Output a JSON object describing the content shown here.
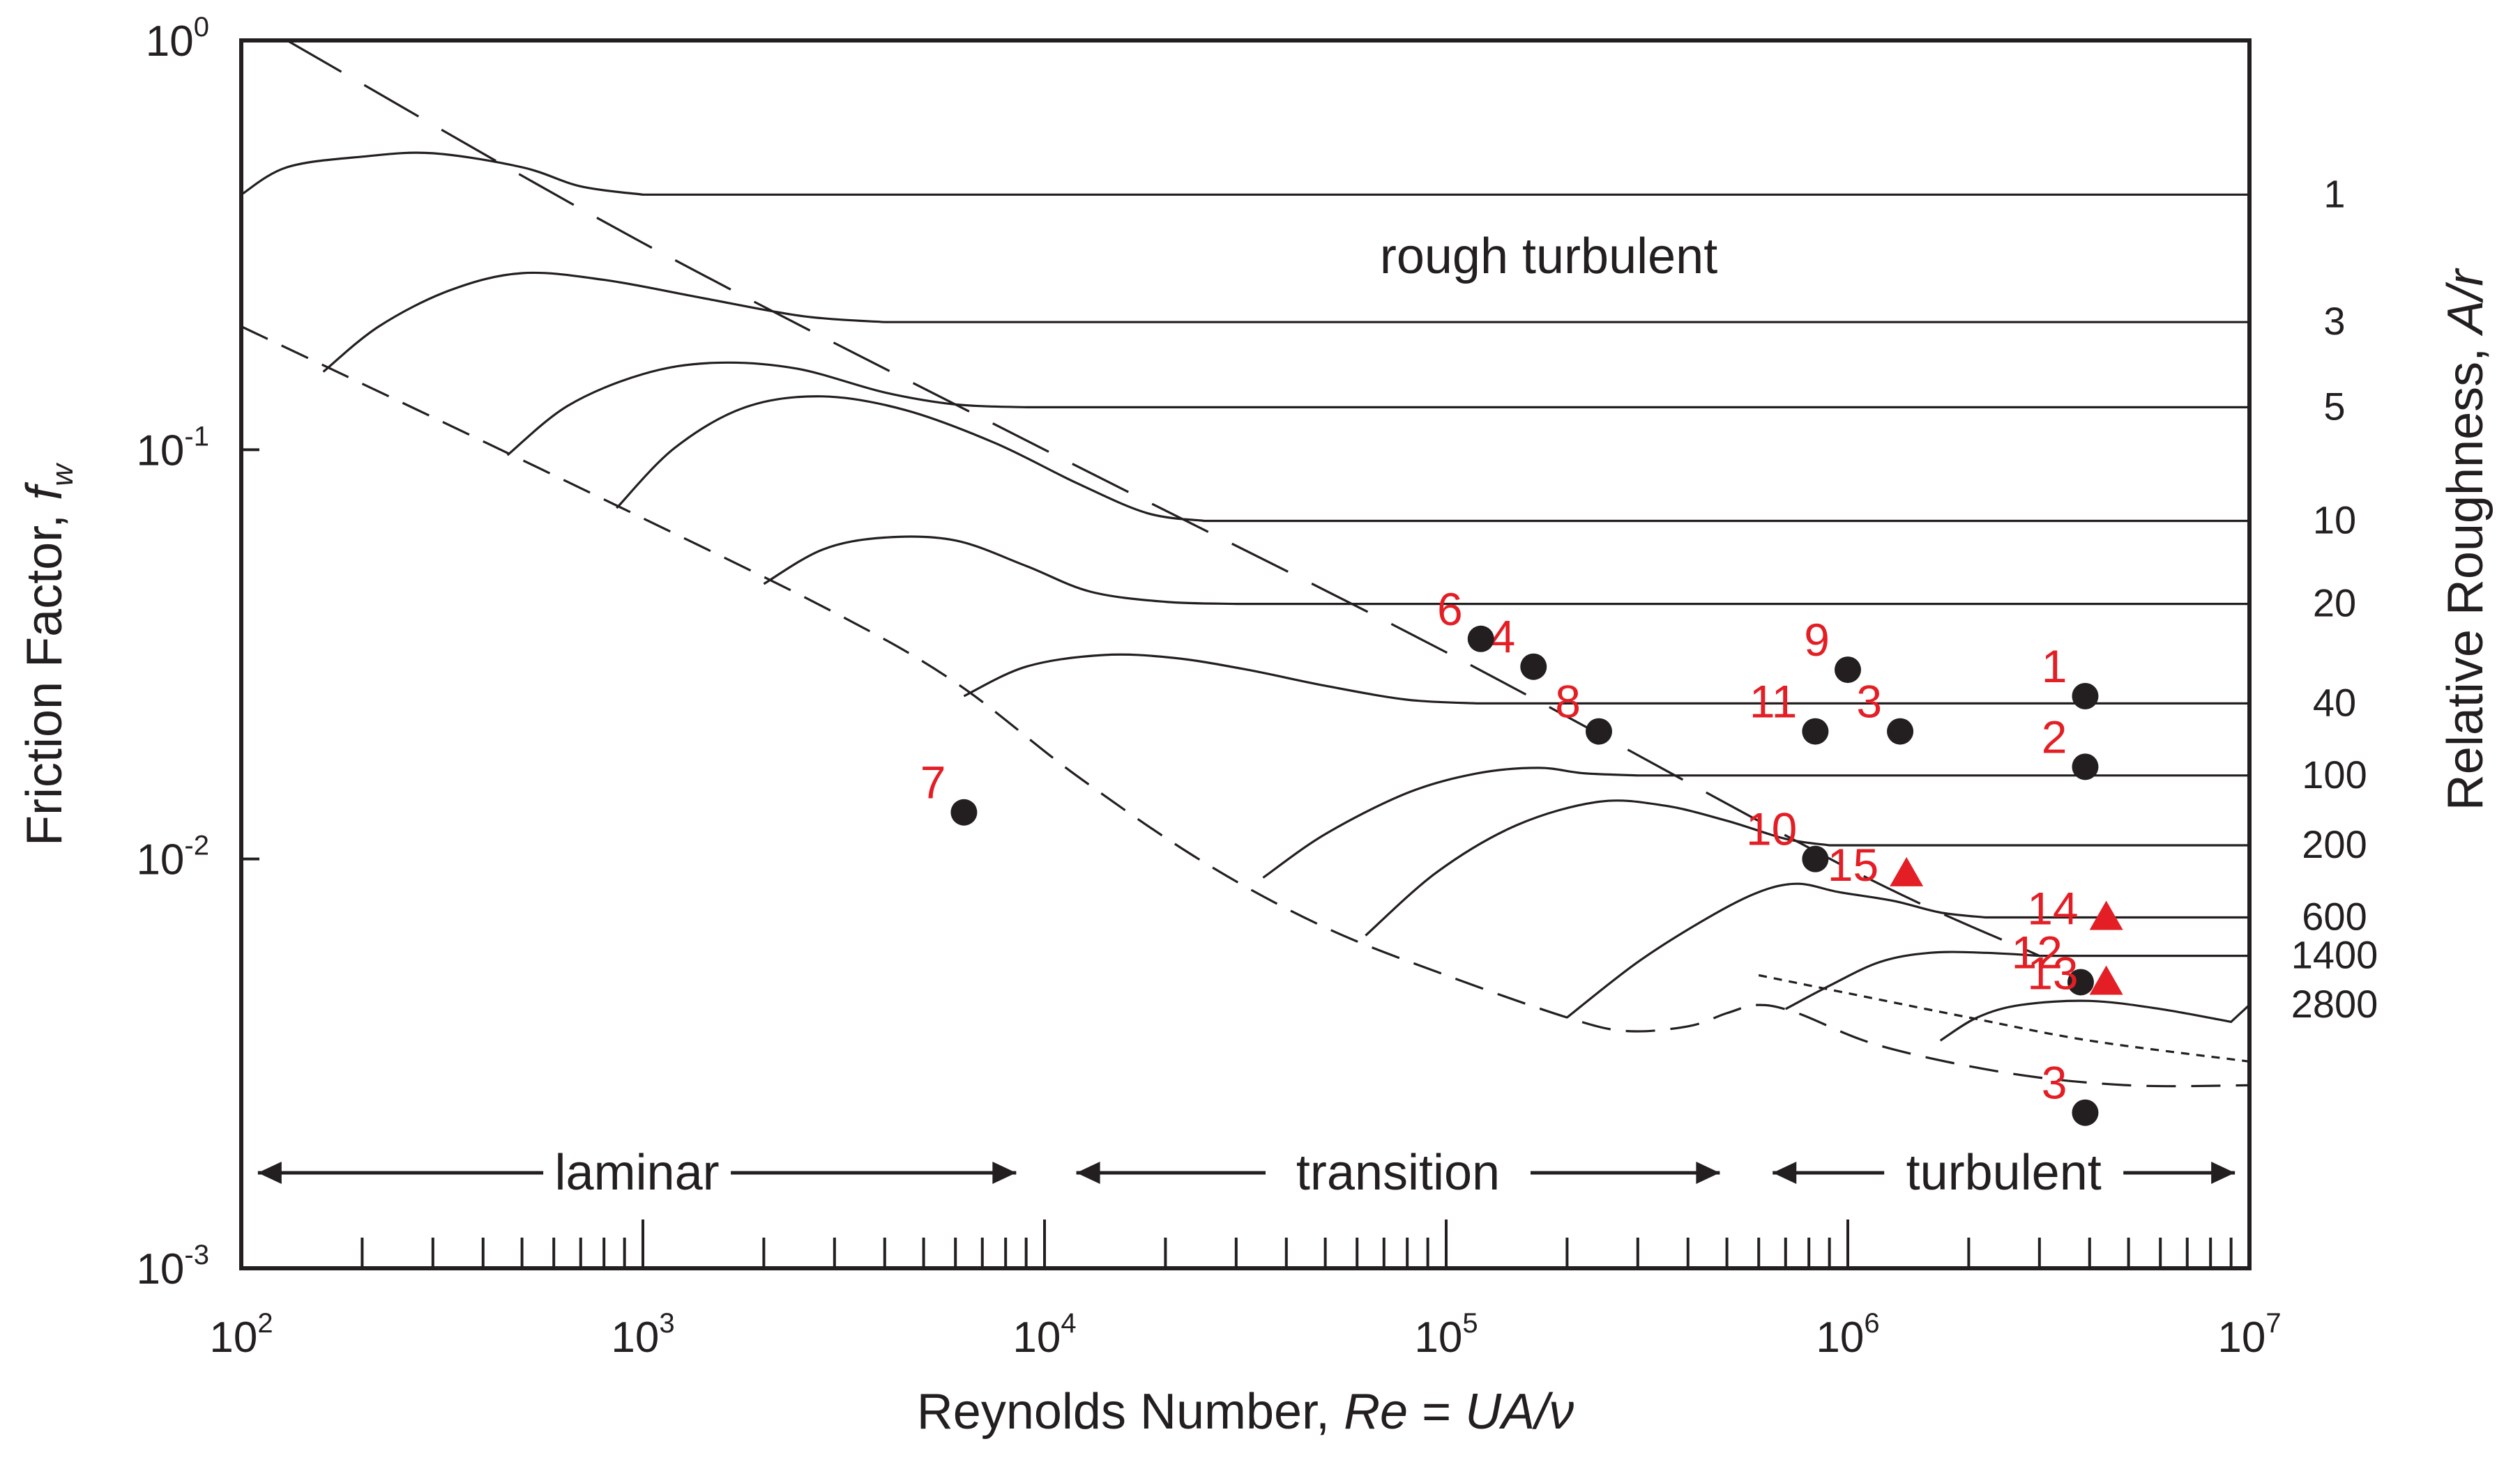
{
  "chart_data": {
    "type": "scatter",
    "title": "",
    "xlabel": "Reynolds Number, Re = UA/ν",
    "xlabel_parts": {
      "prefix": "Reynolds Number, ",
      "var": "Re",
      "mid": " = ",
      "expr": "UA/ν"
    },
    "ylabel_parts": {
      "prefix": "Friction Factor, ",
      "var": "f",
      "sub": "w"
    },
    "y2label_parts": {
      "prefix": "Relative Roughness, ",
      "var": "A/r"
    },
    "x_scale": "log",
    "y_scale": "log",
    "xlim": [
      100,
      10000000
    ],
    "ylim": [
      0.001,
      1
    ],
    "x_ticks": [
      {
        "value": 100,
        "base": "10",
        "exp": "2"
      },
      {
        "value": 1000,
        "base": "10",
        "exp": "3"
      },
      {
        "value": 10000,
        "base": "10",
        "exp": "4"
      },
      {
        "value": 100000,
        "base": "10",
        "exp": "5"
      },
      {
        "value": 1000000,
        "base": "10",
        "exp": "6"
      },
      {
        "value": 10000000,
        "base": "10",
        "exp": "7"
      }
    ],
    "y_ticks": [
      {
        "value": 1,
        "base": "10",
        "exp": "0"
      },
      {
        "value": 0.1,
        "base": "10",
        "exp": "-1"
      },
      {
        "value": 0.01,
        "base": "10",
        "exp": "-2"
      },
      {
        "value": 0.001,
        "base": "10",
        "exp": "-3"
      }
    ],
    "roughness_curves": [
      {
        "label": "1",
        "fw": 0.42,
        "re_end": 10000000,
        "points": [
          [
            100,
            0.42
          ],
          [
            130,
            0.49
          ],
          [
            200,
            0.52
          ],
          [
            300,
            0.53
          ],
          [
            500,
            0.49
          ],
          [
            700,
            0.44
          ],
          [
            1000,
            0.42
          ]
        ]
      },
      {
        "label": "3",
        "fw": 0.205,
        "re_end": 10000000,
        "points": [
          [
            160,
            0.155
          ],
          [
            220,
            0.2
          ],
          [
            330,
            0.245
          ],
          [
            500,
            0.27
          ],
          [
            800,
            0.26
          ],
          [
            1400,
            0.235
          ],
          [
            2500,
            0.212
          ],
          [
            4000,
            0.205
          ]
        ]
      },
      {
        "label": "5",
        "fw": 0.127,
        "re_end": 10000000,
        "points": [
          [
            460,
            0.097
          ],
          [
            650,
            0.128
          ],
          [
            1000,
            0.153
          ],
          [
            1500,
            0.163
          ],
          [
            2400,
            0.158
          ],
          [
            4000,
            0.138
          ],
          [
            6000,
            0.129
          ],
          [
            9000,
            0.127
          ]
        ]
      },
      {
        "label": "10",
        "fw": 0.067,
        "re_end": 10000000,
        "points": [
          [
            860,
            0.072
          ],
          [
            1200,
            0.101
          ],
          [
            1800,
            0.127
          ],
          [
            2800,
            0.135
          ],
          [
            4500,
            0.125
          ],
          [
            7500,
            0.104
          ],
          [
            12000,
            0.083
          ],
          [
            18000,
            0.07
          ],
          [
            25000,
            0.067
          ]
        ]
      },
      {
        "label": "20",
        "fw": 0.042,
        "re_end": 10000000,
        "points": [
          [
            2000,
            0.047
          ],
          [
            2800,
            0.057
          ],
          [
            4000,
            0.061
          ],
          [
            6000,
            0.06
          ],
          [
            9000,
            0.052
          ],
          [
            13000,
            0.045
          ],
          [
            20000,
            0.0425
          ],
          [
            30000,
            0.042
          ]
        ]
      },
      {
        "label": "40",
        "fw": 0.024,
        "re_end": 10000000,
        "points": [
          [
            6300,
            0.025
          ],
          [
            9000,
            0.0295
          ],
          [
            14000,
            0.0315
          ],
          [
            21000,
            0.031
          ],
          [
            32000,
            0.029
          ],
          [
            50000,
            0.0265
          ],
          [
            80000,
            0.0245
          ],
          [
            120000,
            0.024
          ]
        ]
      },
      {
        "label": "100",
        "fw": 0.016,
        "re_end": 10000000,
        "points": [
          [
            35000,
            0.009
          ],
          [
            50000,
            0.0115
          ],
          [
            80000,
            0.0145
          ],
          [
            120000,
            0.0162
          ],
          [
            170000,
            0.0167
          ],
          [
            220000,
            0.0162
          ],
          [
            300000,
            0.016
          ]
        ]
      },
      {
        "label": "200",
        "fw": 0.0108,
        "re_end": 10000000,
        "points": [
          [
            63000,
            0.0065
          ],
          [
            95000,
            0.0093
          ],
          [
            150000,
            0.0121
          ],
          [
            240000,
            0.0138
          ],
          [
            350000,
            0.0135
          ],
          [
            500000,
            0.0124
          ],
          [
            700000,
            0.0112
          ],
          [
            900000,
            0.0108
          ]
        ]
      },
      {
        "label": "600",
        "fw": 0.0072,
        "re_end": 10000000,
        "points": [
          [
            200000,
            0.0041
          ],
          [
            300000,
            0.0056
          ],
          [
            450000,
            0.0072
          ],
          [
            600000,
            0.0083
          ],
          [
            750000,
            0.0087
          ],
          [
            950000,
            0.0083
          ],
          [
            1300000,
            0.0079
          ],
          [
            1700000,
            0.0074
          ],
          [
            2200000,
            0.0072
          ]
        ]
      },
      {
        "label": "1400",
        "fw": 0.0058,
        "re_end": 10000000,
        "points": [
          [
            700000,
            0.0043
          ],
          [
            900000,
            0.0049
          ],
          [
            1200000,
            0.0056
          ],
          [
            1600000,
            0.0059
          ],
          [
            2200000,
            0.0059
          ],
          [
            3000000,
            0.0058
          ]
        ]
      },
      {
        "label": "2800",
        "fw": 0.0044,
        "re_end": 10000000,
        "points": [
          [
            1700000,
            0.0036
          ],
          [
            2100000,
            0.0041
          ],
          [
            2700000,
            0.0044
          ],
          [
            4000000,
            0.0045
          ],
          [
            6000000,
            0.0043
          ],
          [
            9000000,
            0.004
          ]
        ]
      }
    ],
    "smooth_envelope": [
      [
        100,
        0.2
      ],
      [
        300,
        0.12
      ],
      [
        1000,
        0.068
      ],
      [
        3000,
        0.04
      ],
      [
        6000,
        0.027
      ],
      [
        12000,
        0.016
      ],
      [
        25000,
        0.0098
      ],
      [
        50000,
        0.0068
      ],
      [
        100000,
        0.0052
      ],
      [
        200000,
        0.0041
      ],
      [
        280000,
        0.0038
      ],
      [
        400000,
        0.0039
      ],
      [
        500000,
        0.0042
      ],
      [
        600000,
        0.0044
      ],
      [
        750000,
        0.0042
      ],
      [
        1200000,
        0.0035
      ],
      [
        2500000,
        0.003
      ],
      [
        5000000,
        0.0028
      ],
      [
        10000000,
        0.0028
      ]
    ],
    "rough_laminar_boundary": [
      [
        130,
        1.0
      ],
      [
        1000,
        0.32
      ],
      [
        10000,
        0.1
      ],
      [
        100000,
        0.032
      ],
      [
        1000000,
        0.0095
      ],
      [
        3000000,
        0.0058
      ]
    ],
    "short_dashed_curve": [
      [
        600000,
        0.0052
      ],
      [
        1000000,
        0.0047
      ],
      [
        2000000,
        0.0041
      ],
      [
        4000000,
        0.0036
      ],
      [
        10000000,
        0.0032
      ]
    ],
    "regimes": [
      {
        "label": "laminar",
        "from": 110,
        "to": 8500
      },
      {
        "label": "transition",
        "from": 12000,
        "to": 480000
      },
      {
        "label": "turbulent",
        "from": 650000,
        "to": 9200000
      }
    ],
    "region_label": {
      "text": "rough turbulent",
      "re": 180000,
      "fw": 0.27
    },
    "data_points": [
      {
        "label": "1",
        "re": 3900000,
        "fw": 0.025,
        "marker": "circle"
      },
      {
        "label": "2",
        "re": 3900000,
        "fw": 0.0168,
        "marker": "circle"
      },
      {
        "label": "3",
        "re": 3900000,
        "fw": 0.0024,
        "marker": "circle"
      },
      {
        "label": "3",
        "re": 1350000,
        "fw": 0.0205,
        "marker": "circle"
      },
      {
        "label": "4",
        "re": 165000,
        "fw": 0.0295,
        "marker": "circle"
      },
      {
        "label": "6",
        "re": 122000,
        "fw": 0.0345,
        "marker": "circle"
      },
      {
        "label": "7",
        "re": 6300,
        "fw": 0.013,
        "marker": "circle"
      },
      {
        "label": "8",
        "re": 240000,
        "fw": 0.0205,
        "marker": "circle"
      },
      {
        "label": "9",
        "re": 1000000,
        "fw": 0.029,
        "marker": "circle"
      },
      {
        "label": "10",
        "re": 830000,
        "fw": 0.01,
        "marker": "circle"
      },
      {
        "label": "11",
        "re": 830000,
        "fw": 0.0205,
        "marker": "circle"
      },
      {
        "label": "12",
        "re": 3800000,
        "fw": 0.005,
        "marker": "circle"
      },
      {
        "label": "13",
        "re": 4400000,
        "fw": 0.005,
        "marker": "triangle"
      },
      {
        "label": "14",
        "re": 4400000,
        "fw": 0.0072,
        "marker": "triangle"
      },
      {
        "label": "15",
        "re": 1400000,
        "fw": 0.0092,
        "marker": "triangle"
      }
    ],
    "colors": {
      "ink": "#231f20",
      "accent": "#e31e24"
    }
  }
}
